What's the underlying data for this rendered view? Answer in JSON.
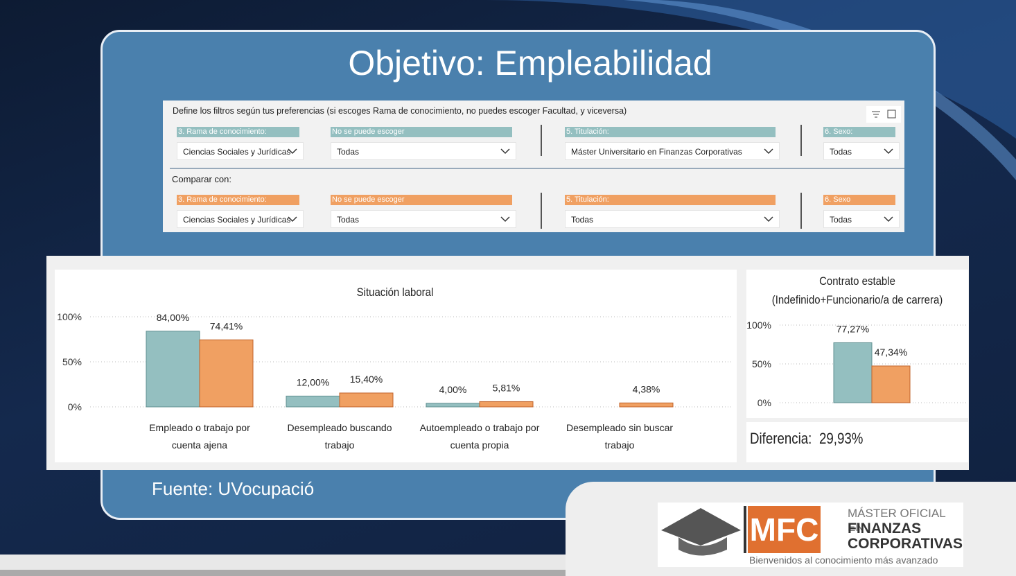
{
  "slide": {
    "title": "Objetivo: Empleabilidad",
    "source": "Fuente: UVocupació"
  },
  "filters": {
    "instructions": "Define los filtros según tus preferencias (si escoges Rama de conocimiento, no puedes escoger Facultad, y viceversa)",
    "primary": [
      {
        "label": "3. Rama de conocimiento:",
        "value": "Ciencias Sociales y Jurídicas"
      },
      {
        "label": "No se puede escoger",
        "value": "Todas"
      },
      {
        "label": "5. Titulación:",
        "value": "Máster Universitario en Finanzas Corporativas"
      },
      {
        "label": "6. Sexo:",
        "value": "Todas"
      }
    ],
    "compare_label": "Comparar con:",
    "compare": [
      {
        "label": "3. Rama de conocimiento:",
        "value": "Ciencias Sociales y Jurídicas"
      },
      {
        "label": "No se puede escoger",
        "value": "Todas"
      },
      {
        "label": "5. Titulación:",
        "value": "Todas"
      },
      {
        "label": "6. Sexo",
        "value": "Todas"
      }
    ]
  },
  "chart_data": [
    {
      "type": "bar",
      "title": "Situación laboral",
      "categories": [
        "Empleado o trabajo por cuenta ajena",
        "Desempleado buscando trabajo",
        "Autoempleado o trabajo por cuenta propia",
        "Desempleado sin buscar trabajo"
      ],
      "series": [
        {
          "color": "#94bfc0",
          "values": [
            84,
            12,
            4,
            null
          ],
          "value_labels": [
            "84,00%",
            "12,00%",
            "4,00%",
            null
          ]
        },
        {
          "color": "#f0a062",
          "values": [
            74.41,
            15.4,
            5.81,
            4.38
          ],
          "value_labels": [
            "74,41%",
            "15,40%",
            "5,81%",
            "4,38%"
          ]
        }
      ],
      "ylim": [
        0,
        100
      ],
      "yticks": [
        {
          "value": 0,
          "label": "0%"
        },
        {
          "value": 50,
          "label": "50%"
        },
        {
          "value": 100,
          "label": "100%"
        }
      ],
      "grid": true
    },
    {
      "type": "bar",
      "title": "Contrato estable (Indefinido+Funcionario/a de carrera)",
      "categories": [
        null
      ],
      "series": [
        {
          "color": "#94bfc0",
          "values": [
            77.27
          ],
          "value_labels": [
            "77,27%"
          ]
        },
        {
          "color": "#f0a062",
          "values": [
            47.34
          ],
          "value_labels": [
            "47,34%"
          ]
        }
      ],
      "ylim": [
        0,
        100
      ],
      "yticks": [
        {
          "value": 0,
          "label": "0%"
        },
        {
          "value": 50,
          "label": "50%"
        },
        {
          "value": 100,
          "label": "100%"
        }
      ],
      "grid": true
    }
  ],
  "difference": {
    "label": "Diferencia:",
    "value": 29.93,
    "value_label": "29,93%"
  },
  "logo": {
    "mark": "MFC",
    "line1": "MÁSTER OFICIAL EN",
    "line2": "FINANZAS",
    "line3": "CORPORATIVAS",
    "tagline": "Bienvenidos al conocimiento más avanzado"
  }
}
